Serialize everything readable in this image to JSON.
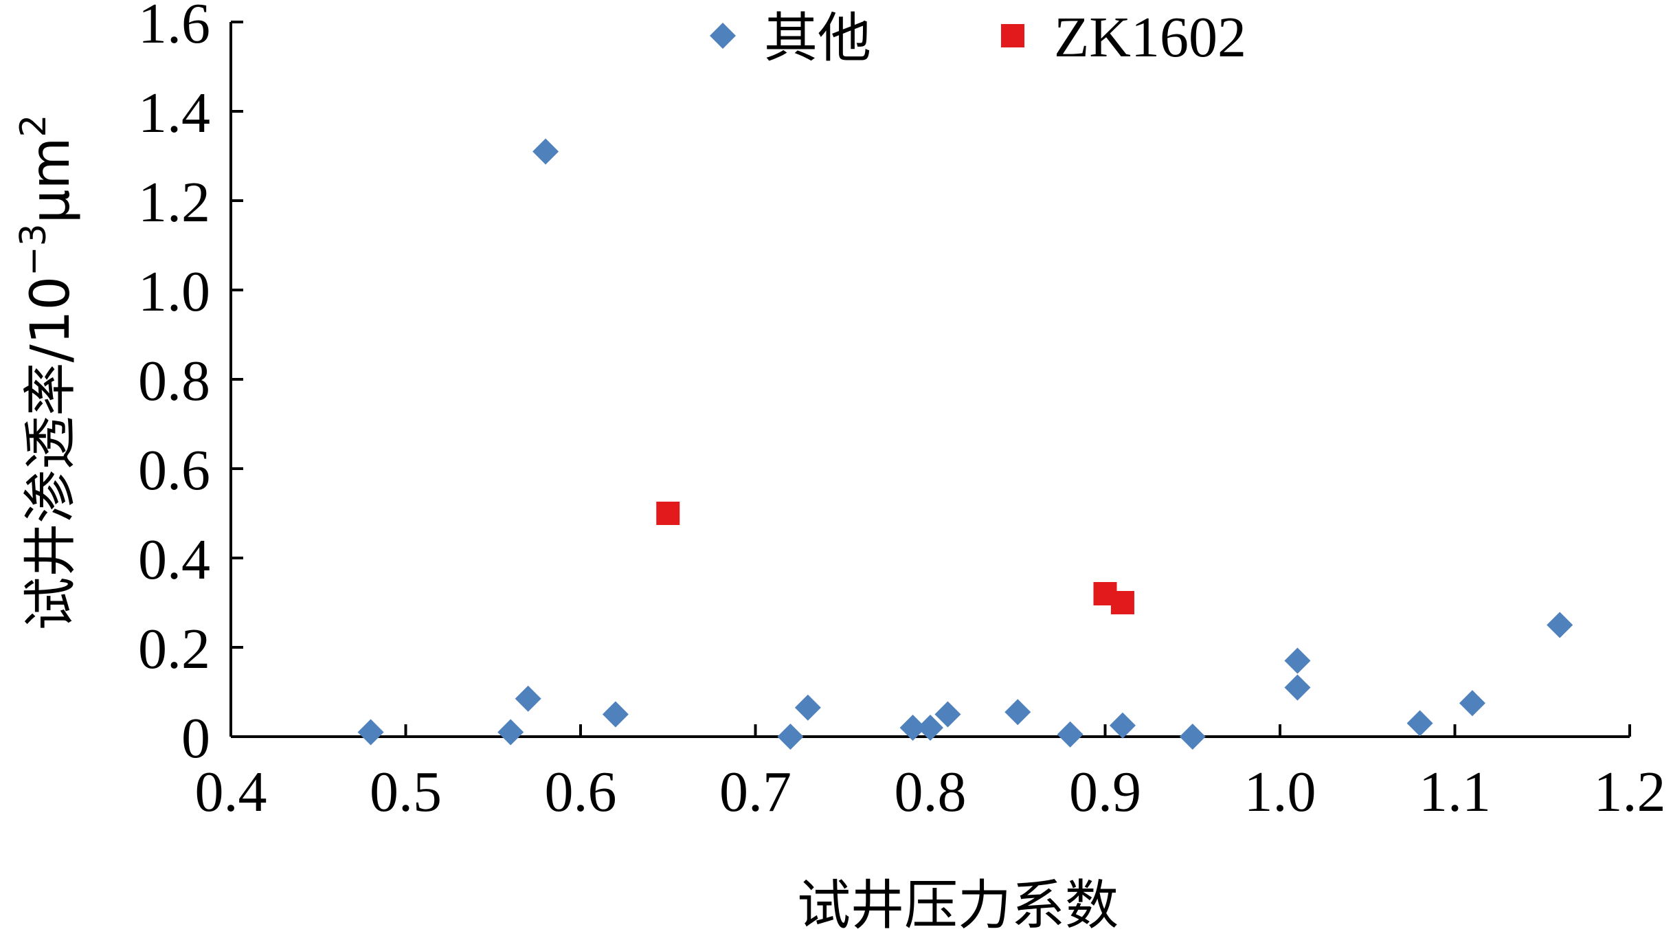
{
  "chart_data": {
    "type": "scatter",
    "xlabel": "试井压力系数",
    "ylabel": {
      "main": "试井渗透率/10",
      "exp": "−3",
      "unit": "μm",
      "unit_exp": "2"
    },
    "xlim": [
      0.4,
      1.2
    ],
    "ylim": [
      0,
      1.6
    ],
    "x_ticks": [
      "0.4",
      "0.5",
      "0.6",
      "0.7",
      "0.8",
      "0.9",
      "1.0",
      "1.1",
      "1.2"
    ],
    "y_ticks": [
      "0",
      "0.2",
      "0.4",
      "0.6",
      "0.8",
      "1.0",
      "1.2",
      "1.4",
      "1.6"
    ],
    "grid": false,
    "legend_position": "top",
    "series": [
      {
        "name": "其他",
        "marker": "diamond",
        "color": "#4F81BD",
        "points": [
          {
            "x": 0.48,
            "y": 0.01
          },
          {
            "x": 0.56,
            "y": 0.01
          },
          {
            "x": 0.57,
            "y": 0.085
          },
          {
            "x": 0.58,
            "y": 1.31
          },
          {
            "x": 0.62,
            "y": 0.05
          },
          {
            "x": 0.72,
            "y": 0.0
          },
          {
            "x": 0.73,
            "y": 0.065
          },
          {
            "x": 0.79,
            "y": 0.02
          },
          {
            "x": 0.8,
            "y": 0.02
          },
          {
            "x": 0.81,
            "y": 0.05
          },
          {
            "x": 0.85,
            "y": 0.055
          },
          {
            "x": 0.88,
            "y": 0.005
          },
          {
            "x": 0.91,
            "y": 0.025
          },
          {
            "x": 0.95,
            "y": 0.0
          },
          {
            "x": 1.01,
            "y": 0.11
          },
          {
            "x": 1.01,
            "y": 0.17
          },
          {
            "x": 1.08,
            "y": 0.03
          },
          {
            "x": 1.11,
            "y": 0.075
          },
          {
            "x": 1.16,
            "y": 0.25
          }
        ]
      },
      {
        "name": "ZK1602",
        "marker": "square",
        "color": "#E31A1C",
        "points": [
          {
            "x": 0.65,
            "y": 0.5
          },
          {
            "x": 0.9,
            "y": 0.32
          },
          {
            "x": 0.91,
            "y": 0.3
          }
        ]
      }
    ]
  }
}
